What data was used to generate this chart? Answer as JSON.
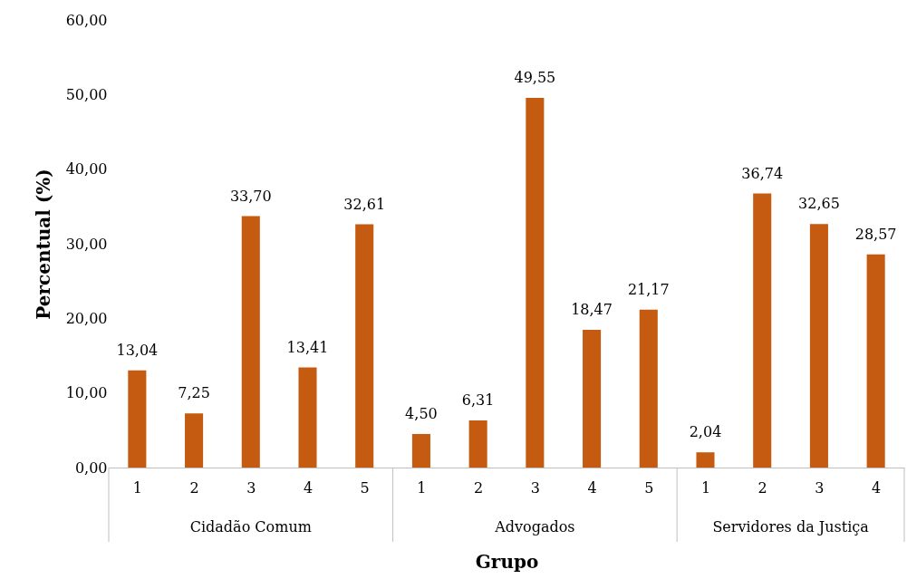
{
  "chart_data": {
    "type": "bar",
    "xlabel": "Grupo",
    "ylabel": "Percentual (%)",
    "categories": [
      "1",
      "2",
      "3",
      "4",
      "5",
      "1",
      "2",
      "3",
      "4",
      "5",
      "1",
      "2",
      "3",
      "4"
    ],
    "values": [
      13.04,
      7.25,
      33.7,
      13.41,
      32.61,
      4.5,
      6.31,
      49.55,
      18.47,
      21.17,
      2.04,
      36.74,
      32.65,
      28.57
    ],
    "value_labels": [
      "13,04",
      "7,25",
      "33,70",
      "13,41",
      "32,61",
      "4,50",
      "6,31",
      "49,55",
      "18,47",
      "21,17",
      "2,04",
      "36,74",
      "32,65",
      "28,57"
    ],
    "color": "#c55a11",
    "ylim": [
      0,
      60
    ],
    "yticks": [
      {
        "value": 0,
        "label": "0,00"
      },
      {
        "value": 10,
        "label": "10,00"
      },
      {
        "value": 20,
        "label": "20,00"
      },
      {
        "value": 30,
        "label": "30,00"
      },
      {
        "value": 40,
        "label": "40,00"
      },
      {
        "value": 50,
        "label": "50,00"
      },
      {
        "value": 60,
        "label": "60,00"
      }
    ],
    "annotations": [
      "Cidadão Comum",
      "Advogados",
      "Servidores da Justiça"
    ],
    "grid": false,
    "legend": false
  }
}
